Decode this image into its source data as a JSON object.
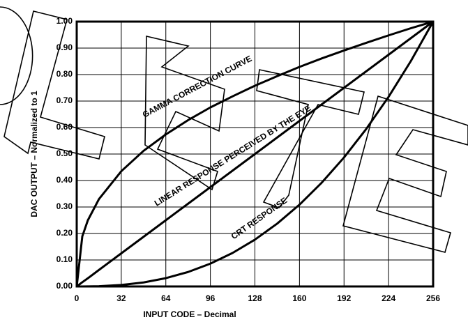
{
  "chart_data": {
    "type": "line",
    "x": [
      0,
      4,
      8,
      16,
      32,
      48,
      64,
      80,
      96,
      112,
      128,
      144,
      160,
      176,
      192,
      208,
      224,
      240,
      256
    ],
    "series": [
      {
        "name": "GAMMA CORRECTION CURVE",
        "color": "#000000",
        "values": [
          0,
          0.189,
          0.25,
          0.33,
          0.435,
          0.512,
          0.574,
          0.628,
          0.676,
          0.718,
          0.758,
          0.794,
          0.829,
          0.861,
          0.891,
          0.92,
          0.948,
          0.975,
          1
        ]
      },
      {
        "name": "LINEAR RESPONSE PERCEIVED BY THE EYE",
        "color": "#000000",
        "values": [
          0,
          0.016,
          0.031,
          0.0625,
          0.125,
          0.1875,
          0.25,
          0.3125,
          0.375,
          0.4375,
          0.5,
          0.5625,
          0.625,
          0.6875,
          0.75,
          0.8125,
          0.875,
          0.9375,
          1
        ]
      },
      {
        "name": "CRT RESPONSE",
        "color": "#000000",
        "values": [
          0,
          0,
          0.0002,
          0.001,
          0.0055,
          0.0152,
          0.0313,
          0.0546,
          0.0861,
          0.1266,
          0.1768,
          0.2373,
          0.3088,
          0.392,
          0.487,
          0.595,
          0.716,
          0.851,
          1
        ]
      }
    ],
    "x_label": "INPUT CODE – Decimal",
    "y_label": "DAC OUTPUT – Normalized to 1",
    "xlim": [
      0,
      256
    ],
    "xticks": [
      0,
      32,
      64,
      96,
      128,
      160,
      192,
      224,
      256
    ],
    "ylim": [
      0,
      1
    ],
    "yticks": [
      {
        "value": 0,
        "label": "0.00"
      },
      {
        "value": 0.1,
        "label": "0.10"
      },
      {
        "value": 0.2,
        "label": "0.20"
      },
      {
        "value": 0.3,
        "label": "0.30"
      },
      {
        "value": 0.4,
        "label": "0.40"
      },
      {
        "value": 0.5,
        "label": "0.50"
      },
      {
        "value": 0.6,
        "label": "0.60"
      },
      {
        "value": 0.7,
        "label": "0.70"
      },
      {
        "value": 0.8,
        "label": "0.80"
      },
      {
        "value": 0.9,
        "label": "0.90"
      },
      {
        "value": 1,
        "label": "1.00"
      }
    ],
    "grid": true
  }
}
